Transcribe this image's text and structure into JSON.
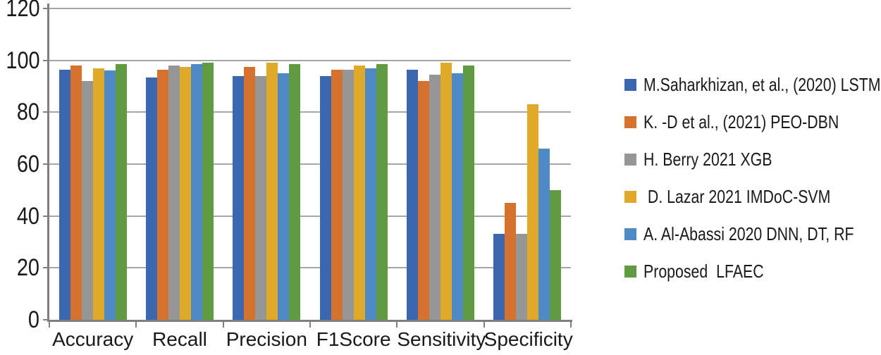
{
  "chart_data": {
    "type": "bar",
    "title": "",
    "categories": [
      "Accuracy",
      "Recall",
      "Precision",
      "F1Score",
      "Sensitivity",
      "Specificity"
    ],
    "series": [
      {
        "name": "M.Saharkhizan, et al., (2020) LSTM",
        "color": "#3B66B0",
        "values": [
          96.5,
          93.5,
          94,
          94,
          96.5,
          33
        ]
      },
      {
        "name": "K. -D et al., (2021) PEO-DBN",
        "color": "#D5722D",
        "values": [
          98,
          96.5,
          97.5,
          96.5,
          92,
          45
        ]
      },
      {
        "name": "H. Berry 2021 XGB",
        "color": "#969696",
        "values": [
          92,
          98,
          94,
          96.5,
          94.5,
          33
        ]
      },
      {
        "name": " D. Lazar 2021 IMDoC-SVM",
        "color": "#E0A928",
        "values": [
          97,
          97.5,
          99,
          98,
          99,
          83
        ]
      },
      {
        "name": "A. Al-Abassi 2020 DNN, DT, RF",
        "color": "#4E8AC5",
        "values": [
          96,
          98.5,
          95,
          97,
          95,
          66
        ]
      },
      {
        "name": "Proposed  LFAEC",
        "color": "#609B41",
        "values": [
          98.5,
          99,
          98.5,
          98.5,
          98,
          50
        ]
      }
    ],
    "xlabel": "",
    "ylabel": "",
    "ylim": [
      0,
      120
    ],
    "yticks": [
      0,
      20,
      40,
      60,
      80,
      100,
      120
    ],
    "grid": true,
    "legend_position": "right"
  },
  "colors": {
    "background": "#FFFFFF",
    "gridline": "#A6A6A6",
    "axis": "#7F7F7F",
    "text": "#1A1A1A"
  }
}
